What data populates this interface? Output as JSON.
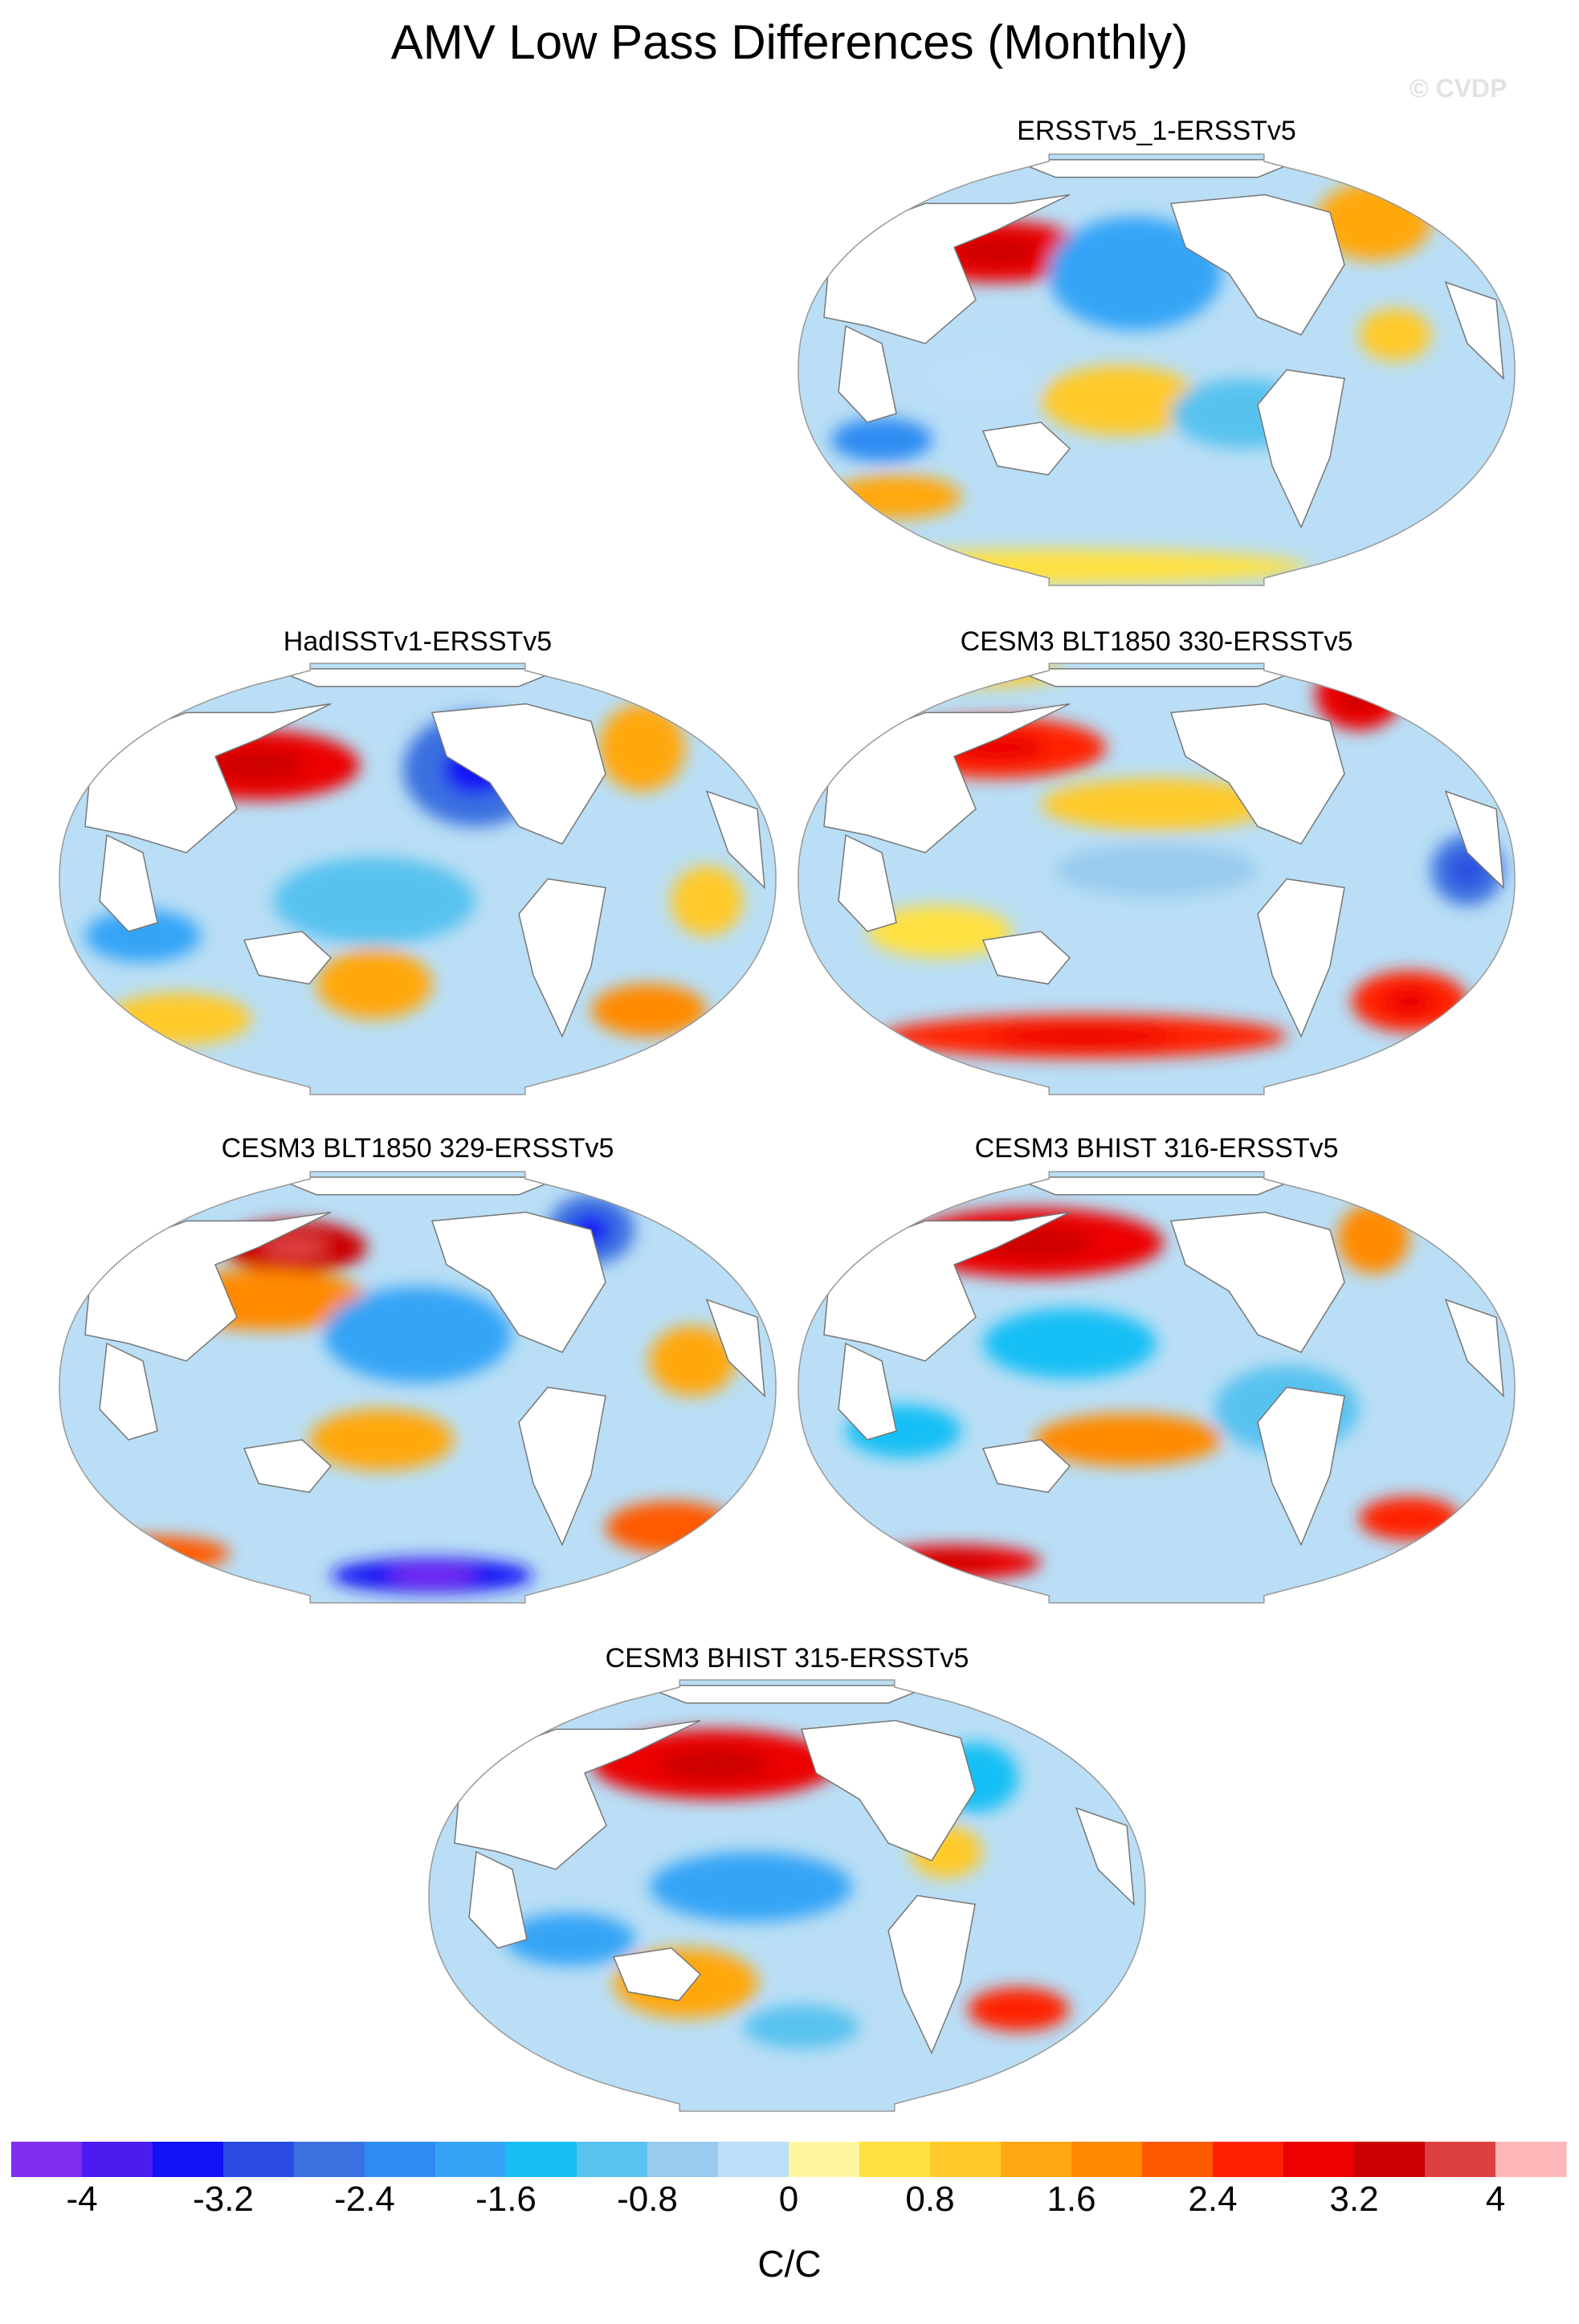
{
  "title": "AMV Low Pass Differences (Monthly)",
  "watermark": "© CVDP",
  "colors": {
    "ocean_base": "#b9def5",
    "land": "#ffffff",
    "coast": "#777777",
    "border": "#999999"
  },
  "chart_data": {
    "type": "heatmap",
    "title": "AMV Low Pass Differences (Monthly)",
    "projection": "Robinson (Pacific-centered)",
    "units_label": "C/C",
    "colorbar": {
      "levels": [
        -4,
        -3.6,
        -3.2,
        -2.8,
        -2.4,
        -2,
        -1.6,
        -1.2,
        -0.8,
        -0.4,
        0,
        0.4,
        0.8,
        1.2,
        1.6,
        2,
        2.4,
        2.8,
        3.2,
        3.6,
        4
      ],
      "tick_labels": [
        "-4",
        "-3.2",
        "-2.4",
        "-1.6",
        "-0.8",
        "0",
        "0.8",
        "1.6",
        "2.4",
        "3.2",
        "4"
      ],
      "colors": [
        "#7f2df0",
        "#4b1cf0",
        "#1212f4",
        "#2a4be0",
        "#3a70e0",
        "#2f8cf2",
        "#36a4f6",
        "#17bff5",
        "#59c2ef",
        "#98cbee",
        "#bbdff6",
        "#fff7a0",
        "#ffe040",
        "#ffca2a",
        "#ffa810",
        "#ff8a00",
        "#ff5a00",
        "#ff2000",
        "#ec0000",
        "#cc0000",
        "#dd4040",
        "#ffb6b8"
      ]
    },
    "panels": [
      {
        "name": "ERSSTv5_1-ERSSTv5"
      },
      {
        "name": "HadISSTv1-ERSSTv5"
      },
      {
        "name": "CESM3 BLT1850 330-ERSSTv5"
      },
      {
        "name": "CESM3 BLT1850 329-ERSSTv5"
      },
      {
        "name": "CESM3 BHIST 316-ERSSTv5"
      },
      {
        "name": "CESM3 BHIST 315-ERSSTv5"
      }
    ]
  }
}
